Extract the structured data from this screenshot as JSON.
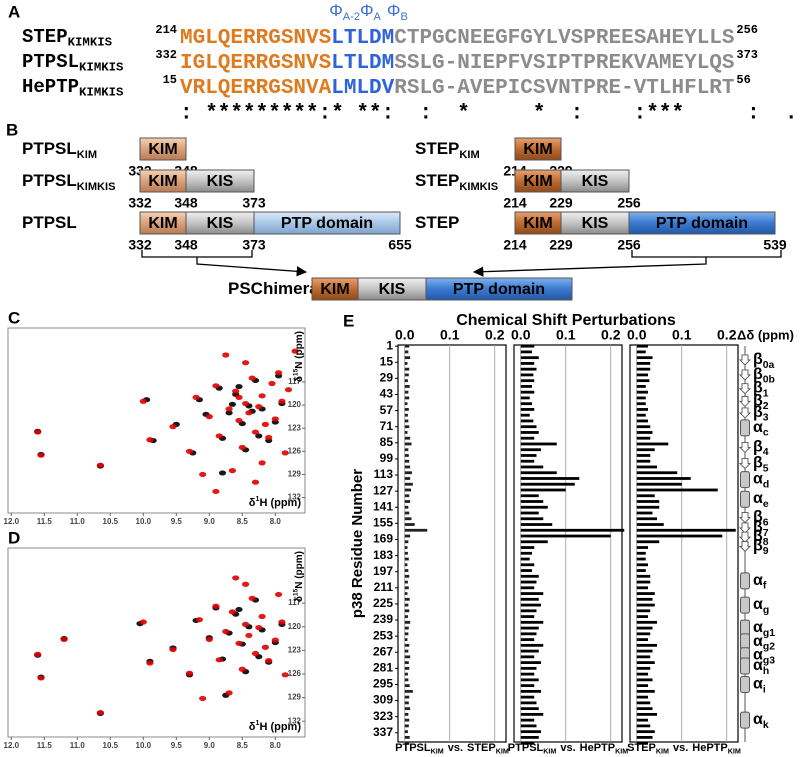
{
  "panel_a": {
    "label": "A",
    "phi": [
      {
        "sym": "Φ",
        "sub": "A-2"
      },
      {
        "sym": "Φ",
        "sub": "A"
      },
      {
        "sym": "Φ",
        "sub": "B"
      }
    ],
    "rows": [
      {
        "name": "STEP",
        "sub": "KIMKIS",
        "start": 214,
        "kim": "MGLQERRGSNVS",
        "motif": "LTLDM",
        "rest": "CTPGCNEEGFGYLVSPREESAHEYLLS",
        "end": 256
      },
      {
        "name": "PTPSL",
        "sub": "KIMKIS",
        "start": 332,
        "kim": "IGLQERRGSNVS",
        "motif": "LTLDM",
        "rest": "SSLG-NIEPFVSIPTPREKVAMEYLQS",
        "end": 373
      },
      {
        "name": "HePTP",
        "sub": "KIMKIS",
        "start": 15,
        "kim": "VRLQERRGSNVA",
        "motif": "LMLDV",
        "rest": "RSLG-AVEPICSVNTPRE-VTLHFLRT",
        "end": 56
      }
    ],
    "consensus": ": *********:* **:  :  *     *  :    :***     :  .:* :"
  },
  "panel_b": {
    "label": "B",
    "constructs": [
      {
        "name": "PTPSL",
        "sub": "KIM",
        "domains": [
          "KIM"
        ],
        "numbers": [
          332,
          348
        ]
      },
      {
        "name": "PTPSL",
        "sub": "KIMKIS",
        "domains": [
          "KIM",
          "KIS"
        ],
        "numbers": [
          332,
          348,
          373
        ]
      },
      {
        "name": "PTPSL",
        "domains": [
          "KIM",
          "KIS",
          "PTP domain"
        ],
        "numbers": [
          332,
          348,
          373,
          655
        ]
      },
      {
        "name": "STEP",
        "sub": "KIM",
        "domains": [
          "KIM"
        ],
        "numbers": [
          214,
          229
        ]
      },
      {
        "name": "STEP",
        "sub": "KIMKIS",
        "domains": [
          "KIM",
          "KIS"
        ],
        "numbers": [
          214,
          229,
          256
        ]
      },
      {
        "name": "STEP",
        "domains": [
          "KIM",
          "KIS",
          "PTP domain"
        ],
        "numbers": [
          214,
          229,
          256,
          539
        ]
      },
      {
        "name": "PSChimera",
        "domains": [
          "KIM",
          "KIS",
          "PTP domain"
        ]
      }
    ]
  },
  "chart_data": [
    {
      "panel": "C",
      "type": "scatter",
      "xlabel": {
        "pre": "δ",
        "sup": "1",
        "text": "H (ppm)"
      },
      "ylabel": {
        "pre": "δ",
        "sup": "15",
        "text": "N (ppm)"
      },
      "xlim": [
        12.05,
        7.55
      ],
      "ylim": [
        110,
        134
      ],
      "xticks": [
        {
          "value": 12,
          "label": "12.0"
        },
        11.5,
        {
          "value": 11,
          "label": "11.0"
        },
        10.5,
        {
          "value": 10,
          "label": "10.0"
        },
        9.5,
        {
          "value": 9,
          "label": "9.0"
        },
        8.5,
        {
          "value": 8,
          "label": "8.0"
        }
      ],
      "yticks": [
        117,
        120,
        123,
        126,
        129,
        132
      ],
      "series": [
        {
          "color": "#000000",
          "x": [
            11.6,
            11.55,
            10.65,
            9.95,
            9.85,
            9.5,
            9.25,
            9.15,
            9.05,
            8.85,
            8.8,
            8.7,
            8.6,
            8.5,
            8.45,
            8.4,
            8.35,
            8.3,
            8.25,
            8.2,
            8.1,
            8.0,
            7.95,
            7.9,
            8.8,
            8.55,
            8.65
          ],
          "y": [
            123.4,
            126.4,
            127.9,
            119.3,
            124.6,
            122.5,
            126.2,
            119.3,
            121.2,
            117.8,
            124.3,
            121.0,
            118.6,
            122.4,
            125.8,
            120.1,
            120.8,
            116.8,
            124.0,
            120.5,
            124.6,
            122.2,
            116.2,
            119.8,
            128.8,
            117.6,
            119.9
          ]
        },
        {
          "color": "#e00000",
          "x": [
            11.6,
            11.55,
            10.65,
            10.0,
            9.9,
            9.55,
            9.3,
            9.2,
            9.0,
            8.9,
            8.85,
            8.7,
            8.6,
            8.55,
            8.5,
            8.45,
            8.4,
            8.35,
            8.3,
            8.25,
            8.2,
            8.15,
            8.1,
            8.0,
            7.95,
            7.9,
            7.85,
            7.8,
            8.65,
            8.75,
            8.3,
            8.45,
            8.2,
            9.1,
            8.9,
            7.7,
            8.05,
            8.55
          ],
          "y": [
            123.5,
            126.5,
            127.8,
            119.5,
            124.5,
            122.8,
            126.0,
            119.0,
            121.5,
            117.5,
            124.0,
            120.5,
            118.2,
            122.0,
            125.5,
            119.8,
            121.0,
            116.5,
            123.5,
            120.2,
            118.8,
            122.5,
            124.2,
            121.8,
            115.8,
            119.5,
            126.2,
            118.0,
            128.5,
            113.5,
            130.0,
            114.5,
            127.5,
            129.0,
            131.2,
            113.0,
            117.2,
            119.0
          ]
        }
      ]
    },
    {
      "panel": "D",
      "type": "scatter",
      "xlabel": {
        "pre": "δ",
        "sup": "1",
        "text": "H (ppm)"
      },
      "ylabel": {
        "pre": "δ",
        "sup": "15",
        "text": "N (ppm)"
      },
      "xlim": [
        12.05,
        7.55
      ],
      "ylim": [
        110,
        134
      ],
      "xticks": [
        {
          "value": 12,
          "label": "12.0"
        },
        11.5,
        {
          "value": 11,
          "label": "11.0"
        },
        10.5,
        {
          "value": 10,
          "label": "10.0"
        },
        9.5,
        {
          "value": 9,
          "label": "9.0"
        },
        8.5,
        {
          "value": 8,
          "label": "8.0"
        }
      ],
      "yticks": [
        117,
        120,
        123,
        126,
        129,
        132
      ],
      "series": [
        {
          "color": "#000000",
          "x": [
            11.6,
            11.55,
            11.2,
            10.65,
            10.05,
            9.9,
            9.55,
            9.3,
            9.2,
            9.0,
            8.9,
            8.8,
            8.7,
            8.6,
            8.5,
            8.45,
            8.4,
            8.3,
            8.25,
            8.2,
            8.1,
            8.0,
            7.9,
            8.75,
            8.55
          ],
          "y": [
            123.6,
            126.4,
            121.5,
            131.0,
            119.6,
            124.4,
            122.7,
            126.1,
            119.2,
            121.4,
            117.6,
            124.1,
            120.8,
            118.4,
            122.2,
            125.7,
            120.0,
            116.6,
            123.8,
            120.4,
            124.5,
            122.0,
            119.7,
            128.7,
            117.8
          ]
        },
        {
          "color": "#e00000",
          "x": [
            11.6,
            11.55,
            11.2,
            10.65,
            10.0,
            9.9,
            9.55,
            9.3,
            9.15,
            9.0,
            8.9,
            8.85,
            8.75,
            8.65,
            8.6,
            8.55,
            8.5,
            8.45,
            8.4,
            8.35,
            8.3,
            8.25,
            8.2,
            8.15,
            8.1,
            8.0,
            7.95,
            7.9,
            7.85,
            8.7,
            8.45,
            9.1
          ],
          "y": [
            123.5,
            126.5,
            121.6,
            130.9,
            119.4,
            124.6,
            122.9,
            125.9,
            119.1,
            121.6,
            117.4,
            124.2,
            120.6,
            118.1,
            113.8,
            122.1,
            125.4,
            119.7,
            121.1,
            116.4,
            123.4,
            120.1,
            118.7,
            122.6,
            124.3,
            121.7,
            115.9,
            119.4,
            126.1,
            128.4,
            114.6,
            129.1
          ]
        }
      ]
    },
    {
      "panel": "E",
      "type": "hbar",
      "title": "Chemical Shift Perturbations",
      "xlabel": "Δδ (ppm)",
      "ylabel": "p38 Residue Number",
      "xlim": [
        -0.015,
        0.225
      ],
      "xticks": [
        {
          "value": 0,
          "label": "0.0"
        },
        0.1,
        0.2
      ],
      "ylim": [
        0,
        345
      ],
      "yticks": [
        1,
        15,
        29,
        43,
        57,
        71,
        85,
        99,
        113,
        127,
        141,
        155,
        169,
        183,
        197,
        211,
        225,
        239,
        253,
        267,
        281,
        295,
        309,
        323,
        337
      ],
      "grid": true,
      "residues": [
        1,
        6,
        11,
        16,
        21,
        26,
        31,
        36,
        41,
        46,
        51,
        56,
        61,
        66,
        71,
        76,
        81,
        86,
        91,
        96,
        101,
        106,
        111,
        116,
        121,
        126,
        131,
        136,
        141,
        146,
        151,
        156,
        161,
        166,
        171,
        176,
        181,
        186,
        191,
        196,
        201,
        206,
        211,
        216,
        221,
        226,
        231,
        236,
        241,
        246,
        251,
        256,
        261,
        266,
        271,
        276,
        281,
        286,
        291,
        296,
        301,
        306,
        311,
        316,
        321,
        326,
        331,
        336,
        341,
        346
      ],
      "series": [
        {
          "caption": {
            "a": "PTPSL",
            "a_sub": "KIM",
            "vs": "vs.",
            "b": "STEP",
            "b_sub": "KIM"
          },
          "color": "#222222",
          "values": [
            0.01,
            0.008,
            0.012,
            0.006,
            0.01,
            0.009,
            0.007,
            0.011,
            0.008,
            0.01,
            0.006,
            0.009,
            0.007,
            0.008,
            0.01,
            0.006,
            0.012,
            0.015,
            0.008,
            0.009,
            0.01,
            0.012,
            0.016,
            0.012,
            0.018,
            0.014,
            0.01,
            0.012,
            0.008,
            0.01,
            0.015,
            0.022,
            0.05,
            0.012,
            0.008,
            0.006,
            0.007,
            0.009,
            0.006,
            0.008,
            0.01,
            0.007,
            0.009,
            0.006,
            0.011,
            0.008,
            0.01,
            0.007,
            0.012,
            0.009,
            0.008,
            0.006,
            0.01,
            0.008,
            0.012,
            0.009,
            0.01,
            0.007,
            0.008,
            0.011,
            0.018,
            0.01,
            0.009,
            0.012,
            0.008,
            0.01,
            0.009,
            0.007,
            0.011,
            0.01
          ]
        },
        {
          "caption": {
            "a": "PTPSL",
            "a_sub": "KIM",
            "vs": "vs.",
            "b": "HePTP",
            "b_sub": "KIM"
          },
          "color": "#000000",
          "values": [
            0.03,
            0.025,
            0.04,
            0.03,
            0.035,
            0.028,
            0.03,
            0.025,
            0.03,
            0.02,
            0.025,
            0.03,
            0.02,
            0.028,
            0.035,
            0.04,
            0.03,
            0.08,
            0.045,
            0.035,
            0.03,
            0.05,
            0.08,
            0.13,
            0.12,
            0.1,
            0.04,
            0.05,
            0.06,
            0.04,
            0.05,
            0.07,
            0.23,
            0.2,
            0.06,
            0.03,
            0.025,
            0.02,
            0.03,
            0.025,
            0.04,
            0.035,
            0.03,
            0.05,
            0.04,
            0.045,
            0.035,
            0.03,
            0.05,
            0.04,
            0.035,
            0.03,
            0.05,
            0.04,
            0.03,
            0.045,
            0.035,
            0.03,
            0.04,
            0.03,
            0.045,
            0.03,
            0.035,
            0.04,
            0.05,
            0.03,
            0.035,
            0.045,
            0.04,
            0.03
          ]
        },
        {
          "caption": {
            "a": "STEP",
            "a_sub": "KIM",
            "vs": "vs.",
            "b": "HePTP",
            "b_sub": "KIM"
          },
          "color": "#000000",
          "values": [
            0.025,
            0.02,
            0.035,
            0.03,
            0.03,
            0.025,
            0.028,
            0.02,
            0.025,
            0.02,
            0.02,
            0.025,
            0.02,
            0.025,
            0.03,
            0.035,
            0.03,
            0.07,
            0.04,
            0.03,
            0.03,
            0.045,
            0.09,
            0.12,
            0.1,
            0.18,
            0.04,
            0.05,
            0.05,
            0.035,
            0.045,
            0.06,
            0.22,
            0.19,
            0.05,
            0.025,
            0.02,
            0.02,
            0.025,
            0.02,
            0.03,
            0.03,
            0.025,
            0.04,
            0.035,
            0.04,
            0.03,
            0.025,
            0.045,
            0.035,
            0.03,
            0.025,
            0.045,
            0.035,
            0.03,
            0.04,
            0.03,
            0.025,
            0.035,
            0.025,
            0.04,
            0.025,
            0.03,
            0.035,
            0.045,
            0.025,
            0.03,
            0.04,
            0.035,
            0.025
          ]
        }
      ],
      "secondary_structure": [
        {
          "sym": "β",
          "sub": "0a",
          "shape": "strand",
          "res": 13
        },
        {
          "sym": "β",
          "sub": "0b",
          "shape": "strand",
          "res": 26
        },
        {
          "sym": "β",
          "sub": "1",
          "shape": "strand",
          "res": 38
        },
        {
          "sym": "β",
          "sub": "2",
          "shape": "strand",
          "res": 49
        },
        {
          "sym": "β",
          "sub": "3",
          "shape": "strand",
          "res": 59
        },
        {
          "sym": "α",
          "sub": "c",
          "shape": "helix",
          "res": 72
        },
        {
          "sym": "β",
          "sub": "4",
          "shape": "strand",
          "res": 89
        },
        {
          "sym": "β",
          "sub": "5",
          "shape": "strand",
          "res": 103
        },
        {
          "sym": "α",
          "sub": "d",
          "shape": "helix",
          "res": 117
        },
        {
          "sym": "α",
          "sub": "e",
          "shape": "helix",
          "res": 134
        },
        {
          "sym": "β",
          "sub": "6",
          "shape": "strand",
          "res": 150
        },
        {
          "sym": "β",
          "sub": "7",
          "shape": "strand",
          "res": 159
        },
        {
          "sym": "β",
          "sub": "8",
          "shape": "strand",
          "res": 167
        },
        {
          "sym": "β",
          "sub": "9",
          "shape": "strand",
          "res": 175
        },
        {
          "sym": "α",
          "sub": "f",
          "shape": "helix",
          "res": 205
        },
        {
          "sym": "α",
          "sub": "g",
          "shape": "helix",
          "res": 226
        },
        {
          "sym": "α",
          "sub": "g1",
          "shape": "helix",
          "res": 246
        },
        {
          "sym": "α",
          "sub": "g2",
          "shape": "helix",
          "res": 258
        },
        {
          "sym": "α",
          "sub": "g3",
          "shape": "helix",
          "res": 270
        },
        {
          "sym": "α",
          "sub": "h",
          "shape": "helix",
          "res": 279
        },
        {
          "sym": "α",
          "sub": "i",
          "shape": "helix",
          "res": 295
        },
        {
          "sym": "α",
          "sub": "k",
          "shape": "helix",
          "res": 326
        }
      ]
    }
  ]
}
